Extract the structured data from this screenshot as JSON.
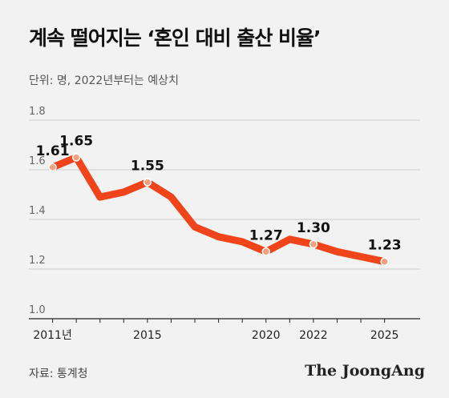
{
  "header": {
    "title": "계속 떨어지는 ‘혼인 대비 출산 비율’",
    "unit_note": "단위: 명, 2022년부터는 예상치"
  },
  "footer": {
    "source": "자료: 통계청",
    "brand": "The JoongAng"
  },
  "colors": {
    "line": "#f0441a",
    "marker_fill": "#f3a07f",
    "grid": "#cccccc",
    "axis": "#222222"
  },
  "chart_data": {
    "type": "line",
    "title": "계속 떨어지는 ‘혼인 대비 출산 비율’",
    "xlabel": "",
    "ylabel": "단위: 명",
    "ylim": [
      1.0,
      1.8
    ],
    "yticks": [
      "1.8",
      "1.6",
      "1.4",
      "1.2",
      "1.0"
    ],
    "xlim": [
      2010,
      2026.5
    ],
    "xticks": [
      {
        "x": 2011,
        "label": "2011년"
      },
      {
        "x": 2015,
        "label": "2015"
      },
      {
        "x": 2020,
        "label": "2020"
      },
      {
        "x": 2022,
        "label": "2022"
      },
      {
        "x": 2025,
        "label": "2025"
      }
    ],
    "series": [
      {
        "x": [
          2011,
          2012,
          2013,
          2014,
          2015,
          2016,
          2017,
          2018,
          2019,
          2020,
          2021,
          2022,
          2023,
          2024,
          2025
        ],
        "values": [
          1.61,
          1.65,
          1.49,
          1.51,
          1.55,
          1.49,
          1.37,
          1.33,
          1.31,
          1.27,
          1.32,
          1.3,
          1.27,
          1.25,
          1.23
        ]
      }
    ],
    "annotations": [
      {
        "x": 2011,
        "y": 1.61,
        "label": "1.61"
      },
      {
        "x": 2012,
        "y": 1.65,
        "label": "1.65"
      },
      {
        "x": 2015,
        "y": 1.55,
        "label": "1.55"
      },
      {
        "x": 2020,
        "y": 1.27,
        "label": "1.27"
      },
      {
        "x": 2022,
        "y": 1.3,
        "label": "1.30"
      },
      {
        "x": 2025,
        "y": 1.23,
        "label": "1.23"
      }
    ],
    "grid": true
  }
}
